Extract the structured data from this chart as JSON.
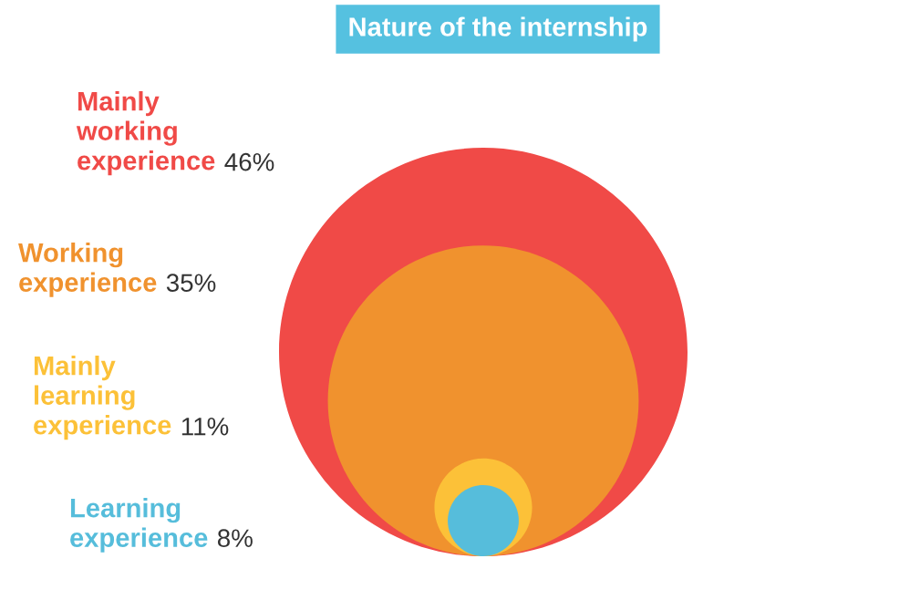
{
  "chart_data": {
    "type": "other",
    "title": "Nature of the internship",
    "categories": [
      "Mainly\nworking\nexperience",
      "Working\nexperience",
      "Mainly\nlearning\nexperience",
      "Learning\nexperience"
    ],
    "values": [
      46,
      35,
      11,
      8
    ],
    "value_labels": [
      "46%",
      "35%",
      "11%",
      "8%"
    ],
    "colors": [
      "#f04a47",
      "#f0922e",
      "#fcc138",
      "#56bddb"
    ]
  }
}
